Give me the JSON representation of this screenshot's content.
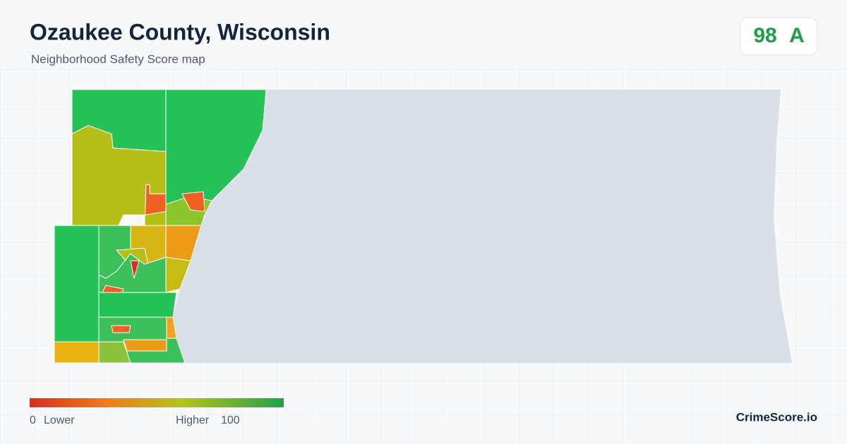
{
  "header": {
    "title": "Ozaukee County, Wisconsin",
    "subtitle": "Neighborhood Safety Score map"
  },
  "score": {
    "value": 98,
    "grade": "A"
  },
  "legend": {
    "min": 0,
    "min_label": "Lower",
    "max_label": "Higher",
    "max": 100
  },
  "brand": "CrimeScore.io"
}
